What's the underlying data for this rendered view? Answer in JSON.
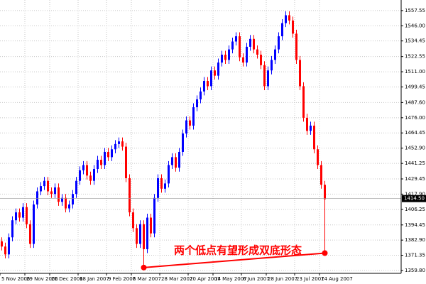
{
  "chart_data": {
    "type": "candlestick",
    "categories": [
      "5 Nov 2006",
      null,
      null,
      null,
      null,
      null,
      null,
      "29 Nov 2006",
      null,
      null,
      null,
      null,
      null,
      null,
      "21 Dec 2006",
      null,
      null,
      null,
      null,
      null,
      null,
      null,
      "18 Jan 2007",
      null,
      null,
      null,
      null,
      null,
      null,
      null,
      "9 Feb 2007",
      null,
      null,
      null,
      null,
      null,
      null,
      "6 Mar 2007",
      null,
      null,
      null,
      null,
      null,
      null,
      null,
      "28 Mar 2007",
      null,
      null,
      null,
      null,
      null,
      null,
      null,
      "20 Apr 2007",
      null,
      null,
      null,
      null,
      null,
      null,
      "14 May 2007",
      null,
      null,
      null,
      null,
      null,
      null,
      null,
      "6 Jun 2007",
      null,
      null,
      null,
      null,
      null,
      null,
      "28 Jun 2007",
      null,
      null,
      null,
      null,
      null,
      null,
      null,
      "23 Jul 2007",
      null,
      null,
      null,
      null,
      null,
      null,
      "14 Aug 2007",
      null
    ],
    "open": [
      1382,
      1378,
      1372,
      1385,
      1398,
      1404,
      1400,
      1408,
      1395,
      1380,
      1410,
      1420,
      1424,
      1428,
      1420,
      1418,
      1423,
      1412,
      1415,
      1407,
      1410,
      1418,
      1428,
      1436,
      1440,
      1432,
      1428,
      1437,
      1444,
      1440,
      1450,
      1446,
      1452,
      1456,
      1458,
      1454,
      1430,
      1404,
      1392,
      1380,
      1395,
      1376,
      1400,
      1388,
      1415,
      1430,
      1422,
      1426,
      1440,
      1446,
      1438,
      1450,
      1464,
      1474,
      1470,
      1484,
      1490,
      1496,
      1504,
      1500,
      1512,
      1508,
      1518,
      1524,
      1520,
      1528,
      1534,
      1538,
      1522,
      1518,
      1530,
      1536,
      1528,
      1524,
      1516,
      1500,
      1512,
      1520,
      1528,
      1538,
      1548,
      1554,
      1550,
      1540,
      1520,
      1500,
      1476,
      1466,
      1470,
      1452,
      1440,
      1425
    ],
    "high": [
      1385,
      1381,
      1388,
      1401,
      1407,
      1407,
      1411,
      1411,
      1398,
      1413,
      1423,
      1427,
      1431,
      1431,
      1423,
      1426,
      1426,
      1418,
      1418,
      1413,
      1421,
      1431,
      1439,
      1443,
      1443,
      1435,
      1440,
      1447,
      1447,
      1453,
      1453,
      1455,
      1459,
      1461,
      1461,
      1457,
      1433,
      1407,
      1395,
      1398,
      1398,
      1403,
      1403,
      1418,
      1433,
      1433,
      1429,
      1443,
      1449,
      1449,
      1453,
      1467,
      1477,
      1477,
      1487,
      1493,
      1499,
      1507,
      1507,
      1515,
      1515,
      1521,
      1527,
      1527,
      1531,
      1537,
      1541,
      1541,
      1525,
      1533,
      1539,
      1539,
      1531,
      1527,
      1519,
      1515,
      1523,
      1531,
      1541,
      1551,
      1557,
      1557,
      1553,
      1543,
      1523,
      1503,
      1479,
      1473,
      1473,
      1455,
      1443,
      1428
    ],
    "low": [
      1375,
      1369,
      1369,
      1382,
      1395,
      1397,
      1397,
      1392,
      1377,
      1377,
      1407,
      1417,
      1421,
      1417,
      1415,
      1415,
      1409,
      1409,
      1404,
      1404,
      1407,
      1415,
      1425,
      1433,
      1429,
      1425,
      1425,
      1434,
      1437,
      1437,
      1443,
      1443,
      1449,
      1453,
      1451,
      1427,
      1401,
      1389,
      1377,
      1377,
      1362,
      1373,
      1385,
      1385,
      1412,
      1419,
      1419,
      1423,
      1437,
      1435,
      1435,
      1447,
      1461,
      1467,
      1467,
      1481,
      1487,
      1493,
      1497,
      1497,
      1505,
      1505,
      1515,
      1517,
      1517,
      1525,
      1531,
      1519,
      1515,
      1515,
      1527,
      1525,
      1521,
      1513,
      1497,
      1497,
      1509,
      1517,
      1525,
      1535,
      1545,
      1547,
      1537,
      1517,
      1497,
      1473,
      1463,
      1463,
      1449,
      1437,
      1422,
      1373
    ],
    "close": [
      1378,
      1372,
      1385,
      1398,
      1404,
      1400,
      1408,
      1395,
      1380,
      1410,
      1420,
      1424,
      1428,
      1420,
      1418,
      1423,
      1412,
      1415,
      1407,
      1410,
      1418,
      1428,
      1436,
      1440,
      1432,
      1428,
      1437,
      1444,
      1440,
      1450,
      1446,
      1452,
      1456,
      1458,
      1454,
      1430,
      1404,
      1392,
      1380,
      1395,
      1376,
      1400,
      1388,
      1415,
      1430,
      1422,
      1426,
      1440,
      1446,
      1438,
      1450,
      1464,
      1474,
      1470,
      1484,
      1490,
      1496,
      1504,
      1500,
      1512,
      1508,
      1518,
      1524,
      1520,
      1528,
      1534,
      1538,
      1522,
      1518,
      1530,
      1536,
      1528,
      1524,
      1516,
      1500,
      1512,
      1520,
      1528,
      1538,
      1548,
      1554,
      1550,
      1540,
      1520,
      1500,
      1476,
      1466,
      1470,
      1452,
      1440,
      1425,
      1414
    ],
    "up_color": "#0000ff",
    "down_color": "#ff0000",
    "ylim": [
      1357.6,
      1565.6
    ],
    "yticks": [
      {
        "value": 1359.8,
        "label": "1359.80"
      },
      {
        "value": 1371.35,
        "label": "1371.35"
      },
      {
        "value": 1382.9,
        "label": "1382.90"
      },
      {
        "value": 1394.45,
        "label": "1394.45"
      },
      {
        "value": 1406.25,
        "label": "1406.25"
      },
      {
        "value": 1417.9,
        "label": "1417.90"
      },
      {
        "value": 1429.45,
        "label": "1429.45"
      },
      {
        "value": 1441.25,
        "label": "1441.25"
      },
      {
        "value": 1452.9,
        "label": "1452.90"
      },
      {
        "value": 1464.45,
        "label": "1464.45"
      },
      {
        "value": 1476,
        "label": "1476.00"
      },
      {
        "value": 1487.6,
        "label": "1487.60"
      },
      {
        "value": 1499.45,
        "label": "1499.45"
      },
      {
        "value": 1511,
        "label": "1511.00"
      },
      {
        "value": 1522.55,
        "label": "1522.55"
      },
      {
        "value": 1534.45,
        "label": "1534.45"
      },
      {
        "value": 1546,
        "label": "1546.00"
      },
      {
        "value": 1557.55,
        "label": "1557.55"
      }
    ],
    "current_price": {
      "value": 1414.5,
      "label": "1414.50"
    },
    "grid": true,
    "annotation": {
      "text": "两个低点有望形成双底形态",
      "color": "#ff0000",
      "points": [
        40,
        91
      ]
    }
  }
}
